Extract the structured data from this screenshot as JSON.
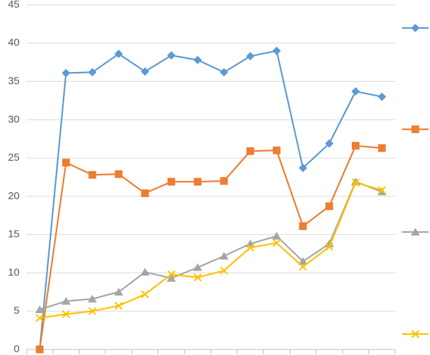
{
  "chart_data": {
    "type": "line",
    "categories": [
      null,
      null,
      null,
      null,
      null,
      null,
      null,
      null,
      null,
      null,
      null,
      null,
      null,
      null
    ],
    "series": [
      {
        "color": "#5b9bd5",
        "marker": "diamond",
        "values": [
          0,
          36.1,
          36.2,
          38.6,
          36.3,
          38.4,
          37.8,
          36.2,
          38.3,
          39.0,
          23.7,
          26.9,
          33.7,
          33.0
        ]
      },
      {
        "color": "#ed7d31",
        "marker": "square",
        "values": [
          0,
          24.4,
          22.8,
          22.9,
          20.4,
          21.9,
          21.9,
          22.0,
          25.9,
          26.0,
          16.1,
          18.7,
          26.6,
          26.3
        ]
      },
      {
        "color": "#a5a5a5",
        "marker": "triangle",
        "values": [
          5.2,
          6.3,
          6.6,
          7.5,
          10.1,
          9.3,
          10.7,
          12.2,
          13.8,
          14.8,
          11.5,
          13.8,
          21.9,
          20.6
        ]
      },
      {
        "color": "#ffc000",
        "marker": "x",
        "values": [
          4.1,
          4.6,
          5.0,
          5.7,
          7.2,
          9.8,
          9.4,
          10.3,
          13.3,
          13.9,
          10.8,
          13.4,
          21.8,
          20.8
        ]
      }
    ],
    "ylim": [
      0,
      45
    ],
    "yticks": [
      0,
      5,
      10,
      15,
      20,
      25,
      30,
      35,
      40,
      45
    ],
    "grid": true
  }
}
